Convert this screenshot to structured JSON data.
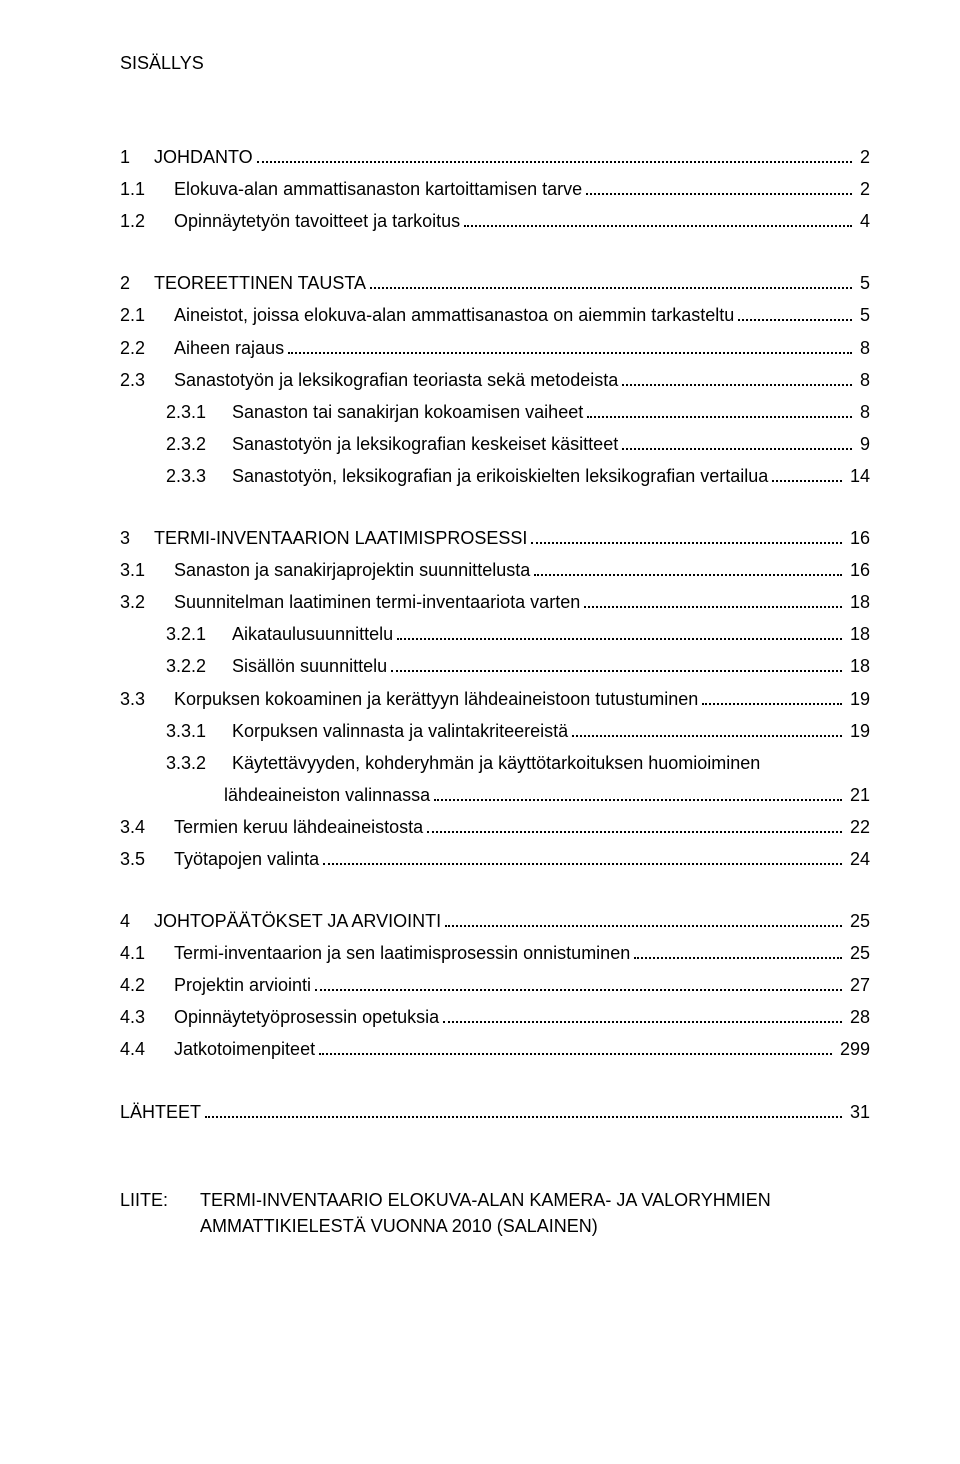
{
  "title": "SISÄLLYS",
  "sections": [
    {
      "gap_before": true,
      "lines": [
        {
          "level": 0,
          "num": "1",
          "text": "JOHDANTO",
          "page": "2"
        },
        {
          "level": 1,
          "num": "1.1",
          "text": "Elokuva-alan ammattisanaston kartoittamisen tarve",
          "page": "2"
        },
        {
          "level": 1,
          "num": "1.2",
          "text": "Opinnäytetyön tavoitteet ja tarkoitus",
          "page": "4"
        }
      ]
    },
    {
      "gap_before": true,
      "lines": [
        {
          "level": 0,
          "num": "2",
          "text": "TEOREETTINEN TAUSTA",
          "page": "5"
        },
        {
          "level": 1,
          "num": "2.1",
          "text": "Aineistot, joissa elokuva-alan ammattisanastoa on aiemmin tarkasteltu",
          "page": "5"
        },
        {
          "level": 1,
          "num": "2.2",
          "text": "Aiheen rajaus",
          "page": "8"
        },
        {
          "level": 1,
          "num": "2.3",
          "text": "Sanastotyön ja leksikografian teoriasta sekä metodeista",
          "page": "8"
        },
        {
          "level": 2,
          "num": "2.3.1",
          "text": "Sanaston tai sanakirjan kokoamisen vaiheet",
          "page": "8"
        },
        {
          "level": 2,
          "num": "2.3.2",
          "text": "Sanastotyön ja leksikografian keskeiset käsitteet",
          "page": "9"
        },
        {
          "level": 2,
          "num": "2.3.3",
          "text": "Sanastotyön, leksikografian ja erikoiskielten leksikografian vertailua",
          "page": "14"
        }
      ]
    },
    {
      "gap_before": true,
      "lines": [
        {
          "level": 0,
          "num": "3",
          "text": "TERMI-INVENTAARION LAATIMISPROSESSI",
          "page": "16"
        },
        {
          "level": 1,
          "num": "3.1",
          "text": "Sanaston ja sanakirjaprojektin suunnittelusta",
          "page": "16"
        },
        {
          "level": 1,
          "num": "3.2",
          "text": "Suunnitelman laatiminen termi-inventaariota varten",
          "page": "18"
        },
        {
          "level": 2,
          "num": "3.2.1",
          "text": "Aikataulusuunnittelu",
          "page": "18"
        },
        {
          "level": 2,
          "num": "3.2.2",
          "text": "Sisällön suunnittelu",
          "page": "18"
        },
        {
          "level": 1,
          "num": "3.3",
          "text": "Korpuksen kokoaminen ja kerättyyn lähdeaineistoon tutustuminen",
          "page": "19"
        },
        {
          "level": 2,
          "num": "3.3.1",
          "text": "Korpuksen valinnasta ja valintakriteereistä",
          "page": "19"
        },
        {
          "level": 2,
          "num": "3.3.2",
          "text": "Käytettävyyden, kohderyhmän ja käyttötarkoituksen huomioiminen",
          "wrap": "lähdeaineiston valinnassa",
          "page": "21"
        },
        {
          "level": 1,
          "num": "3.4",
          "text": "Termien keruu lähdeaineistosta",
          "page": "22"
        },
        {
          "level": 1,
          "num": "3.5",
          "text": "Työtapojen valinta",
          "page": "24"
        }
      ]
    },
    {
      "gap_before": true,
      "lines": [
        {
          "level": 0,
          "num": "4",
          "text": "JOHTOPÄÄTÖKSET JA ARVIOINTI",
          "page": "25"
        },
        {
          "level": 1,
          "num": "4.1",
          "text": "Termi-inventaarion ja sen laatimisprosessin onnistuminen",
          "page": "25"
        },
        {
          "level": 1,
          "num": "4.2",
          "text": "Projektin arviointi",
          "page": "27"
        },
        {
          "level": 1,
          "num": "4.3",
          "text": "Opinnäytetyöprosessin opetuksia",
          "page": "28"
        },
        {
          "level": 1,
          "num": "4.4",
          "text": "Jatkotoimenpiteet",
          "page": "299"
        }
      ]
    },
    {
      "gap_before": true,
      "lines": [
        {
          "level": 0,
          "num": "",
          "text": "LÄHTEET",
          "page": "31"
        }
      ]
    }
  ],
  "appendix": {
    "label": "LIITE:",
    "text1": "TERMI-INVENTAARIO ELOKUVA-ALAN KAMERA- JA VALORYHMIEN",
    "text2": "AMMATTIKIELESTÄ VUONNA 2010 (SALAINEN)"
  }
}
